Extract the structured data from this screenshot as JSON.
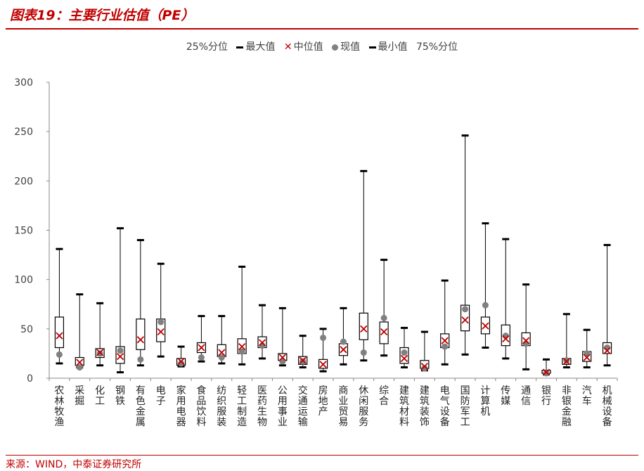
{
  "figure": {
    "title": "图表19：主要行业估值（PE）",
    "source": "来源：WIND，中泰证券研究所"
  },
  "legend": {
    "q25": "25%分位",
    "max": "最大值",
    "median": "中位值",
    "current": "现值",
    "min": "最小值",
    "q75": "75%分位"
  },
  "colors": {
    "brand": "#c00000",
    "median_marker": "#c00000",
    "current_marker": "#808080",
    "box": "#000000",
    "axis": "#404040"
  },
  "chart_data": {
    "type": "boxplot",
    "ylim": [
      0,
      300
    ],
    "yticks": [
      0,
      50,
      100,
      150,
      200,
      250,
      300
    ],
    "grid": false,
    "legend_position": "top",
    "series_keys": [
      "min",
      "q25",
      "median",
      "q75",
      "max",
      "current"
    ],
    "categories": [
      "农林牧渔",
      "采掘",
      "化工",
      "钢铁",
      "有色金属",
      "电子",
      "家用电器",
      "食品饮料",
      "纺织服装",
      "轻工制造",
      "医药生物",
      "公用事业",
      "交通运输",
      "房地产",
      "商业贸易",
      "休闲服务",
      "综合",
      "建筑材料",
      "建筑装饰",
      "电气设备",
      "国防军工",
      "计算机",
      "传媒",
      "通信",
      "银行",
      "非银金融",
      "汽车",
      "机械设备"
    ],
    "data": [
      {
        "min": 15,
        "q25": 31,
        "median": 43,
        "q75": 62,
        "max": 131,
        "current": 24
      },
      {
        "min": 11,
        "q25": 13,
        "median": 16,
        "q75": 21,
        "max": 85,
        "current": 11
      },
      {
        "min": 13,
        "q25": 21,
        "median": 26,
        "q75": 30,
        "max": 76,
        "current": 25
      },
      {
        "min": 6,
        "q25": 15,
        "median": 22,
        "q75": 32,
        "max": 152,
        "current": 28
      },
      {
        "min": 13,
        "q25": 29,
        "median": 39,
        "q75": 60,
        "max": 140,
        "current": 19
      },
      {
        "min": 22,
        "q25": 37,
        "median": 47,
        "q75": 60,
        "max": 116,
        "current": 57
      },
      {
        "min": 12,
        "q25": 13,
        "median": 17,
        "q75": 20,
        "max": 32,
        "current": 15
      },
      {
        "min": 17,
        "q25": 26,
        "median": 31,
        "q75": 36,
        "max": 63,
        "current": 21
      },
      {
        "min": 15,
        "q25": 22,
        "median": 26,
        "q75": 34,
        "max": 63,
        "current": 21
      },
      {
        "min": 14,
        "q25": 25,
        "median": 32,
        "q75": 40,
        "max": 113,
        "current": 27
      },
      {
        "min": 20,
        "q25": 31,
        "median": 36,
        "q75": 42,
        "max": 74,
        "current": 33
      },
      {
        "min": 13,
        "q25": 18,
        "median": 21,
        "q75": 25,
        "max": 71,
        "current": 17
      },
      {
        "min": 11,
        "q25": 14,
        "median": 18,
        "q75": 22,
        "max": 43,
        "current": 17
      },
      {
        "min": 7,
        "q25": 10,
        "median": 14,
        "q75": 19,
        "max": 50,
        "current": 41
      },
      {
        "min": 14,
        "q25": 23,
        "median": 29,
        "q75": 35,
        "max": 71,
        "current": 37
      },
      {
        "min": 18,
        "q25": 39,
        "median": 50,
        "q75": 66,
        "max": 210,
        "current": 26
      },
      {
        "min": 23,
        "q25": 35,
        "median": 47,
        "q75": 57,
        "max": 120,
        "current": 61
      },
      {
        "min": 11,
        "q25": 15,
        "median": 20,
        "q75": 31,
        "max": 51,
        "current": 26
      },
      {
        "min": 8,
        "q25": 10,
        "median": 12,
        "q75": 18,
        "max": 47,
        "current": 10
      },
      {
        "min": 14,
        "q25": 31,
        "median": 38,
        "q75": 45,
        "max": 99,
        "current": 32
      },
      {
        "min": 24,
        "q25": 48,
        "median": 59,
        "q75": 74,
        "max": 246,
        "current": 70
      },
      {
        "min": 31,
        "q25": 45,
        "median": 53,
        "q75": 62,
        "max": 157,
        "current": 74
      },
      {
        "min": 20,
        "q25": 33,
        "median": 40,
        "q75": 54,
        "max": 141,
        "current": 43
      },
      {
        "min": 9,
        "q25": 33,
        "median": 38,
        "q75": 46,
        "max": 95,
        "current": 35
      },
      {
        "min": 4,
        "q25": 5,
        "median": 6,
        "q75": 8,
        "max": 19,
        "current": 5
      },
      {
        "min": 11,
        "q25": 14,
        "median": 17,
        "q75": 20,
        "max": 65,
        "current": 18
      },
      {
        "min": 11,
        "q25": 17,
        "median": 21,
        "q75": 27,
        "max": 49,
        "current": 25
      },
      {
        "min": 13,
        "q25": 25,
        "median": 28,
        "q75": 36,
        "max": 135,
        "current": 31
      }
    ]
  }
}
